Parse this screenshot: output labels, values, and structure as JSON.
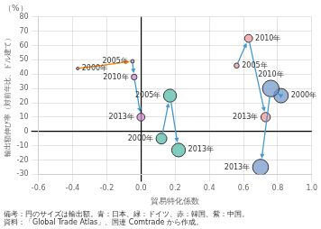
{
  "chart_data": {
    "type": "bubble",
    "xlabel": "貿易特化係数",
    "ylabel": "輸出額伸び率（対前年比、ドル建て）",
    "y_unit_label": "（%）",
    "notes": [
      "備考：円のサイズは輸出額。青：日本、緑：ドイツ、赤：韓国、紫：中国。",
      "資料：「Global Trade Atlas」、国連 Comtrade から作成。"
    ],
    "xlim": [
      -0.6,
      1.0
    ],
    "ylim": [
      -30,
      80
    ],
    "xticks": [
      -0.6,
      -0.4,
      -0.2,
      {
        "value": 0.0,
        "label": "0.0"
      },
      0.2,
      0.4,
      0.6,
      0.8,
      {
        "value": 1.0,
        "label": "1.0"
      }
    ],
    "yticks": [
      -30,
      -20,
      -10,
      0,
      10,
      20,
      30,
      40,
      50,
      60,
      70,
      80
    ],
    "grid": true,
    "series": [
      {
        "color": "#CC88CC",
        "edge_color": "#333333",
        "x": [
          -0.37,
          -0.05,
          -0.04,
          0.0
        ],
        "values": [
          44,
          49,
          38,
          10
        ],
        "sizes": [
          0.006,
          0.025,
          0.04,
          0.055
        ],
        "labels": [
          "2000年",
          "2005年",
          "2010年",
          "2013年"
        ],
        "arrows": [
          {
            "from": [
              -0.37,
              44
            ],
            "to": [
              -0.05,
              49
            ],
            "color": "#FF8800"
          },
          {
            "from": [
              -0.05,
              49
            ],
            "to": [
              -0.04,
              38
            ],
            "color": "#4499CC"
          },
          {
            "from": [
              -0.04,
              38
            ],
            "to": [
              0.0,
              10
            ],
            "color": "#4499CC"
          }
        ]
      },
      {
        "color": "#55BBAA",
        "edge_color": "#333333",
        "x": [
          0.12,
          0.17,
          0.22
        ],
        "values": [
          -5,
          25,
          -13
        ],
        "sizes": [
          0.075,
          0.09,
          0.095
        ],
        "labels": [
          "2000年",
          "2005年",
          "2013年"
        ],
        "arrows": [
          {
            "from": [
              0.12,
              -5
            ],
            "to": [
              0.17,
              25
            ],
            "color": "#4499CC"
          },
          {
            "from": [
              0.17,
              25
            ],
            "to": [
              0.22,
              -13
            ],
            "color": "#4499CC"
          }
        ]
      },
      {
        "color": "#EE9999",
        "edge_color": "#333333",
        "x": [
          0.56,
          0.63,
          0.73
        ],
        "values": [
          46,
          65,
          10
        ],
        "sizes": [
          0.035,
          0.055,
          0.065
        ],
        "labels": [
          "2005年",
          "2010年",
          "2013年"
        ],
        "arrows": [
          {
            "from": [
              0.56,
              46
            ],
            "to": [
              0.63,
              65
            ],
            "color": "#4499CC"
          },
          {
            "from": [
              0.63,
              65
            ],
            "to": [
              0.73,
              10
            ],
            "color": "#4499CC"
          }
        ]
      },
      {
        "color": "#7799CC",
        "edge_color": "#333333",
        "x": [
          0.82,
          0.76,
          0.7
        ],
        "values": [
          25,
          30,
          -25
        ],
        "sizes": [
          0.1,
          0.115,
          0.11
        ],
        "labels": [
          "2000年",
          "2010年",
          "2013年"
        ],
        "arrows": [
          {
            "from": [
              0.82,
              25
            ],
            "to": [
              0.76,
              30
            ],
            "color": "#4499CC"
          },
          {
            "from": [
              0.76,
              30
            ],
            "to": [
              0.7,
              -25
            ],
            "color": "#4499CC"
          }
        ]
      }
    ]
  }
}
